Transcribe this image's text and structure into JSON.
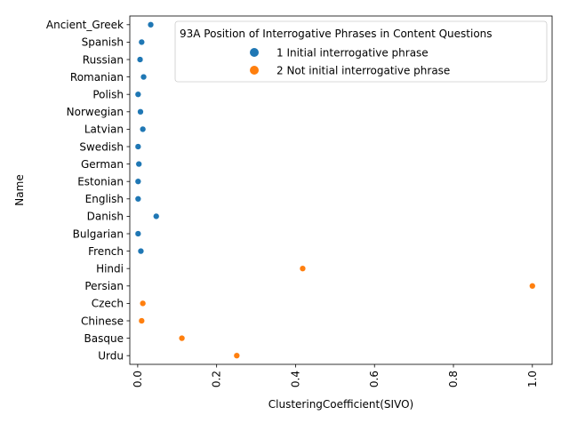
{
  "chart_data": {
    "type": "scatter",
    "xlabel": "ClusteringCoefficient(SIVO)",
    "ylabel": "Name",
    "xlim": [
      -0.02,
      1.05
    ],
    "x_ticks": [
      0.0,
      0.2,
      0.4,
      0.6,
      0.8,
      1.0
    ],
    "x_tick_labels": [
      "0.0",
      "0.2",
      "0.4",
      "0.6",
      "0.8",
      "1.0"
    ],
    "x_tick_rotation": "vertical",
    "grid": false,
    "categories": [
      "Ancient_Greek",
      "Spanish",
      "Russian",
      "Romanian",
      "Polish",
      "Norwegian",
      "Latvian",
      "Swedish",
      "German",
      "Estonian",
      "English",
      "Danish",
      "Bulgarian",
      "French",
      "Hindi",
      "Persian",
      "Czech",
      "Chinese",
      "Basque",
      "Urdu"
    ],
    "legend": {
      "title": "93A Position of Interrogative Phrases in Content Questions",
      "placement": "top-right"
    },
    "series": [
      {
        "name": "1 Initial interrogative phrase",
        "color": "#1f77b4",
        "points": [
          {
            "y": "Ancient_Greek",
            "x": 0.033
          },
          {
            "y": "Spanish",
            "x": 0.01
          },
          {
            "y": "Russian",
            "x": 0.006
          },
          {
            "y": "Romanian",
            "x": 0.015
          },
          {
            "y": "Polish",
            "x": 0.001
          },
          {
            "y": "Norwegian",
            "x": 0.007
          },
          {
            "y": "Latvian",
            "x": 0.013
          },
          {
            "y": "Swedish",
            "x": 0.001
          },
          {
            "y": "German",
            "x": 0.003
          },
          {
            "y": "Estonian",
            "x": 0.001
          },
          {
            "y": "English",
            "x": 0.001
          },
          {
            "y": "Danish",
            "x": 0.047
          },
          {
            "y": "Bulgarian",
            "x": 0.001
          },
          {
            "y": "French",
            "x": 0.008
          }
        ]
      },
      {
        "name": "2 Not initial interrogative phrase",
        "color": "#ff7f0e",
        "points": [
          {
            "y": "Hindi",
            "x": 0.418
          },
          {
            "y": "Persian",
            "x": 1.0
          },
          {
            "y": "Czech",
            "x": 0.013
          },
          {
            "y": "Chinese",
            "x": 0.01
          },
          {
            "y": "Basque",
            "x": 0.112
          },
          {
            "y": "Urdu",
            "x": 0.251
          }
        ]
      }
    ]
  }
}
